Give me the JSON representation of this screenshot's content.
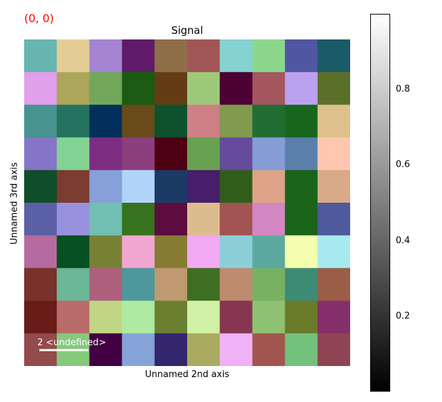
{
  "coordinate_readout": "(0, 0)",
  "chart_data": {
    "type": "heatmap",
    "title": "Signal",
    "xlabel": "Unnamed 2nd axis",
    "ylabel": "Unnamed 3rd axis",
    "rows": 10,
    "cols": 10,
    "cell_colors": [
      [
        "#67b6b1",
        "#e3cd95",
        "#a484d3",
        "#5f1b69",
        "#8f6e47",
        "#a15656",
        "#84d3d2",
        "#8ad78c",
        "#5056a2",
        "#1a5b67"
      ],
      [
        "#e29feb",
        "#aba65a",
        "#72a75a",
        "#1b5b13",
        "#633c14",
        "#9dc979",
        "#4c0034",
        "#a4565e",
        "#bba2f1",
        "#5a7029"
      ],
      [
        "#46938f",
        "#25725f",
        "#03305a",
        "#684a1b",
        "#0d522d",
        "#cf7f86",
        "#819a4e",
        "#1f6d33",
        "#18651e",
        "#dec08c"
      ],
      [
        "#8676c7",
        "#83d394",
        "#7c2c81",
        "#8b3f7c",
        "#4d0012",
        "#68a152",
        "#664a9b",
        "#859dd4",
        "#5a7fab",
        "#ffc7b0"
      ],
      [
        "#0f4d2b",
        "#7c3b30",
        "#87a0d8",
        "#b0d4f9",
        "#1b3a66",
        "#461e69",
        "#305e1a",
        "#dea48a",
        "#196419",
        "#d9aa88"
      ],
      [
        "#5b5fa6",
        "#9991dd",
        "#72bfb3",
        "#37731e",
        "#5c0c3e",
        "#dcbc8f",
        "#a15452",
        "#d387c3",
        "#196419",
        "#4e5a9b"
      ],
      [
        "#b56aa0",
        "#065022",
        "#788133",
        "#f1a6d2",
        "#867c34",
        "#f1a9f1",
        "#8cced8",
        "#5ca99f",
        "#f4ffae",
        "#a6eaf0"
      ],
      [
        "#78312b",
        "#6cb798",
        "#ae5f7c",
        "#4c989b",
        "#bf9a70",
        "#3e6e21",
        "#be8b6f",
        "#77b263",
        "#3e8b75",
        "#995d48"
      ],
      [
        "#681b17",
        "#b96b69",
        "#c1d587",
        "#aeeaa1",
        "#6a7f30",
        "#cff0a5",
        "#873551",
        "#8ec171",
        "#6b7a29",
        "#842f69"
      ],
      [
        "#934b4b",
        "#86c97d",
        "#420042",
        "#86a4d7",
        "#33266f",
        "#aaab60",
        "#efb2f6",
        "#a2554f",
        "#74c17d",
        "#8e4453"
      ]
    ],
    "colorbar": {
      "colormap": "gray",
      "range": [
        0,
        1
      ],
      "ticks": [
        0.2,
        0.4,
        0.6,
        0.8
      ],
      "tick_labels": [
        "0.2",
        "0.4",
        "0.6",
        "0.8"
      ]
    },
    "scalebar": {
      "label": "2 <undefined>",
      "length_cells": 1.5,
      "color": "#ffffff"
    }
  }
}
